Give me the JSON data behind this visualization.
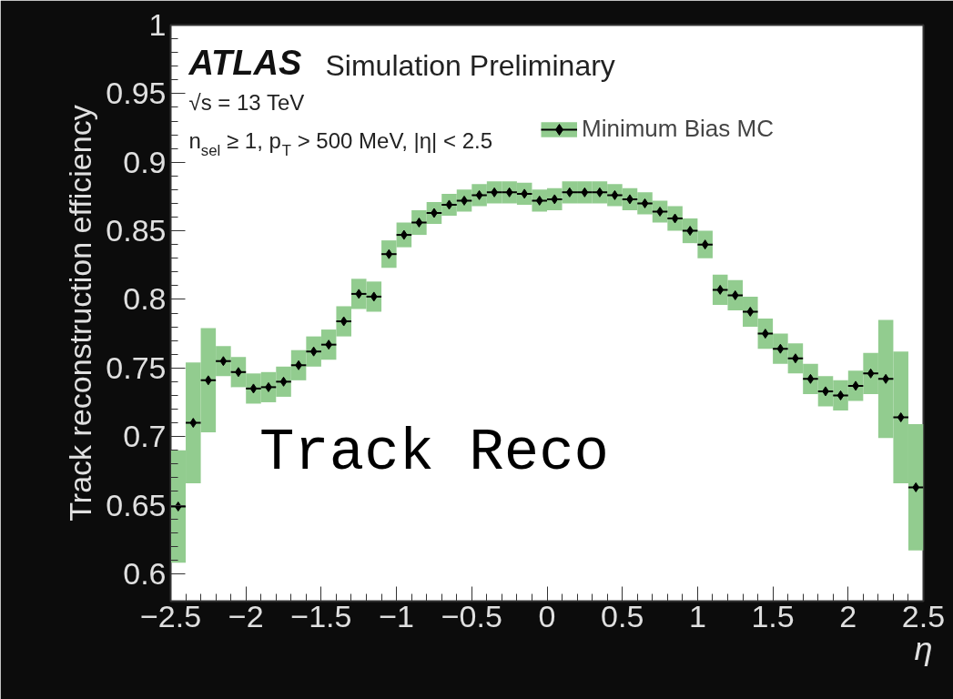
{
  "chart_data": {
    "type": "scatter",
    "title": "ATLAS Simulation Preliminary",
    "xlabel": "η",
    "ylabel": "Track reconstruction efficiency",
    "annotations": [
      "√s = 13 TeV",
      "n$_{sel}$ ≥ 1, p$_{T}$ > 500 MeV, |η| < 2.5",
      "Track Reco"
    ],
    "x": [
      -2.45,
      -2.35,
      -2.25,
      -2.15,
      -2.05,
      -1.95,
      -1.85,
      -1.75,
      -1.65,
      -1.55,
      -1.45,
      -1.35,
      -1.25,
      -1.15,
      -1.05,
      -0.95,
      -0.85,
      -0.75,
      -0.65,
      -0.55,
      -0.45,
      -0.35,
      -0.25,
      -0.15,
      -0.05,
      0.05,
      0.15,
      0.25,
      0.35,
      0.45,
      0.55,
      0.65,
      0.75,
      0.85,
      0.95,
      1.05,
      1.15,
      1.25,
      1.35,
      1.45,
      1.55,
      1.65,
      1.75,
      1.85,
      1.95,
      2.05,
      2.15,
      2.25,
      2.35,
      2.45
    ],
    "series": [
      {
        "name": "Minimum Bias MC",
        "color": "#000000",
        "values": [
          0.649,
          0.71,
          0.741,
          0.755,
          0.747,
          0.735,
          0.736,
          0.74,
          0.752,
          0.762,
          0.767,
          0.784,
          0.804,
          0.802,
          0.833,
          0.847,
          0.856,
          0.863,
          0.869,
          0.872,
          0.876,
          0.878,
          0.878,
          0.877,
          0.872,
          0.873,
          0.878,
          0.878,
          0.878,
          0.876,
          0.873,
          0.87,
          0.864,
          0.859,
          0.85,
          0.84,
          0.807,
          0.803,
          0.791,
          0.775,
          0.764,
          0.757,
          0.742,
          0.733,
          0.73,
          0.737,
          0.746,
          0.742,
          0.714,
          0.663
        ],
        "errors": [
          0.041,
          0.044,
          0.038,
          0.011,
          0.011,
          0.011,
          0.011,
          0.011,
          0.011,
          0.011,
          0.011,
          0.011,
          0.011,
          0.011,
          0.01,
          0.009,
          0.009,
          0.008,
          0.008,
          0.008,
          0.008,
          0.008,
          0.008,
          0.008,
          0.008,
          0.008,
          0.008,
          0.008,
          0.008,
          0.008,
          0.008,
          0.008,
          0.008,
          0.009,
          0.009,
          0.01,
          0.011,
          0.011,
          0.011,
          0.011,
          0.011,
          0.011,
          0.011,
          0.011,
          0.011,
          0.011,
          0.015,
          0.043,
          0.048,
          0.046
        ],
        "xerrors": [
          0.05,
          0.05,
          0.05,
          0.05,
          0.05,
          0.05,
          0.05,
          0.05,
          0.05,
          0.05,
          0.05,
          0.05,
          0.05,
          0.05,
          0.05,
          0.05,
          0.05,
          0.05,
          0.05,
          0.05,
          0.05,
          0.05,
          0.05,
          0.05,
          0.05,
          0.05,
          0.05,
          0.05,
          0.05,
          0.05,
          0.05,
          0.05,
          0.05,
          0.05,
          0.05,
          0.05,
          0.05,
          0.05,
          0.05,
          0.05,
          0.05,
          0.05,
          0.05,
          0.05,
          0.05,
          0.05,
          0.05,
          0.05,
          0.05,
          0.05
        ]
      }
    ],
    "marker": "diamond",
    "legend": "top right",
    "grid": false,
    "xlim": [
      -2.5,
      2.5
    ],
    "xticks": [
      {
        "value": -2.5,
        "label": "−2.5"
      },
      {
        "value": -2,
        "label": "−2"
      },
      {
        "value": -1.5,
        "label": "−1.5"
      },
      {
        "value": -1,
        "label": "−1"
      },
      {
        "value": -0.5,
        "label": "−0.5"
      },
      0,
      0.5,
      1,
      1.5,
      2,
      2.5
    ],
    "ylim": [
      0.58,
      1
    ],
    "yticks": [
      0.6,
      0.65,
      0.7,
      0.75,
      0.8,
      0.85,
      0.9,
      0.95,
      1
    ]
  }
}
